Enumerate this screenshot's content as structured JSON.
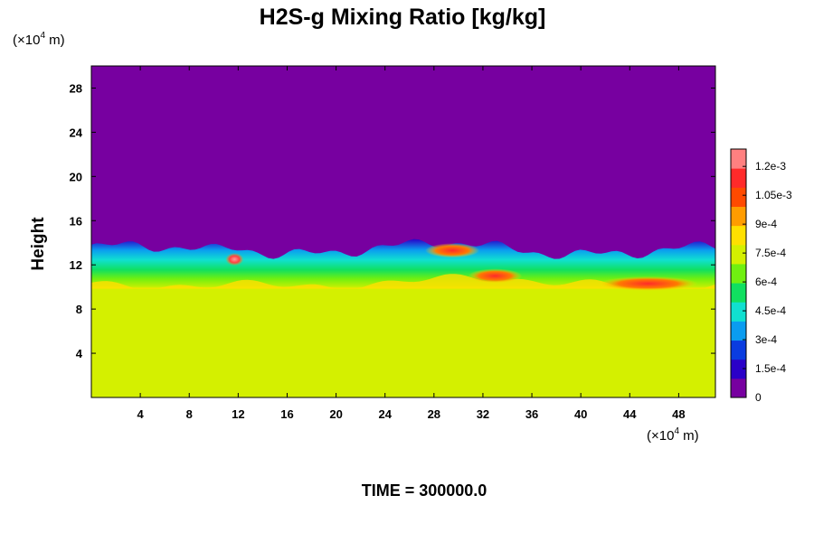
{
  "chart_data": {
    "type": "heatmap",
    "title": "H2S-g Mixing Ratio [kg/kg]",
    "ylabel": "Height",
    "xlabel": "",
    "x_unit": "(×10",
    "x_unit_exp": "4",
    "x_unit_tail": " m)",
    "y_unit": "(×10",
    "y_unit_exp": "4",
    "y_unit_tail": " m)",
    "xlim": [
      0,
      51
    ],
    "ylim": [
      0,
      30
    ],
    "x_ticks": [
      4,
      8,
      12,
      16,
      20,
      24,
      28,
      32,
      36,
      40,
      44,
      48
    ],
    "y_ticks": [
      4,
      8,
      12,
      16,
      20,
      24,
      28
    ],
    "x_tick_labels": [
      "4",
      "8",
      "12",
      "16",
      "20",
      "24",
      "28",
      "32",
      "36",
      "40",
      "44",
      "48"
    ],
    "y_tick_labels": [
      "4",
      "8",
      "12",
      "16",
      "20",
      "24",
      "28"
    ],
    "colorbar": {
      "min": 0,
      "max": 0.00129,
      "tick_values": [
        0,
        0.00015,
        0.0003,
        0.00045,
        0.0006,
        0.00075,
        0.0009,
        0.00105,
        0.0012
      ],
      "tick_labels": [
        "0",
        "1.5e-4",
        "3e-4",
        "4.5e-4",
        "6e-4",
        "7.5e-4",
        "9e-4",
        "1.05e-3",
        "1.2e-3"
      ],
      "colors": [
        "#7700a0",
        "#2a00c8",
        "#0a3ce0",
        "#0a9cf0",
        "#10e0d0",
        "#10e060",
        "#70f010",
        "#d4f000",
        "#ffe000",
        "#ff9c00",
        "#ff4a00",
        "#ff2a2a",
        "#ff8080"
      ]
    },
    "field_description": {
      "background_value": 0,
      "lower_layer_value": 0.00088,
      "lower_layer_top_height": 10.0,
      "layer_top_height": 13.5,
      "hotspots": [
        {
          "x": 11.7,
          "y": 12.5,
          "value": 0.00128
        },
        {
          "x": 29.5,
          "y": 13.3,
          "value": 0.0011
        },
        {
          "x": 33.0,
          "y": 11.0,
          "value": 0.00108
        },
        {
          "x": 45.5,
          "y": 10.3,
          "value": 0.00102
        }
      ]
    }
  },
  "footer": {
    "time_text": "TIME = 300000.0"
  }
}
